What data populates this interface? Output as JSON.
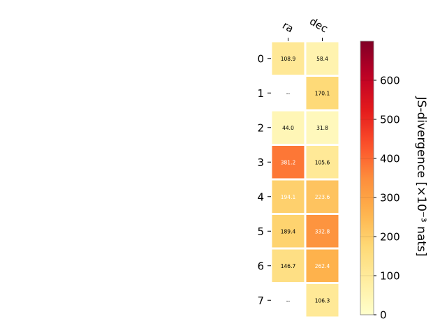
{
  "chart_data": {
    "type": "heatmap",
    "columns": [
      "ra",
      "dec"
    ],
    "rows": [
      "0",
      "1",
      "2",
      "3",
      "4",
      "5",
      "6",
      "7"
    ],
    "values": [
      [
        108.9,
        58.4
      ],
      [
        null,
        170.1
      ],
      [
        44.0,
        31.8
      ],
      [
        381.2,
        105.6
      ],
      [
        194.1,
        223.6
      ],
      [
        189.4,
        332.8
      ],
      [
        146.7,
        262.4
      ],
      [
        null,
        106.3
      ]
    ],
    "cell_labels": [
      [
        "108.9",
        "58.4"
      ],
      [
        "--",
        "170.1"
      ],
      [
        "44.0",
        "31.8"
      ],
      [
        "381.2",
        "105.6"
      ],
      [
        "194.1",
        "223.6"
      ],
      [
        "189.4",
        "332.8"
      ],
      [
        "146.7",
        "262.4"
      ],
      [
        "--",
        "106.3"
      ]
    ],
    "missing_label": "--",
    "colorbar": {
      "label": "JS-divergence [×10⁻³ nats]",
      "range": [
        0,
        700
      ],
      "ticks": [
        "0",
        "100",
        "200",
        "300",
        "400",
        "500",
        "600"
      ],
      "tick_values": [
        0,
        100,
        200,
        300,
        400,
        500,
        600
      ],
      "colormap": "YlOrRd"
    },
    "colors": {
      "cell_border": "#ffffff",
      "text_dark": "#000000",
      "text_light": "#ffffff"
    }
  }
}
